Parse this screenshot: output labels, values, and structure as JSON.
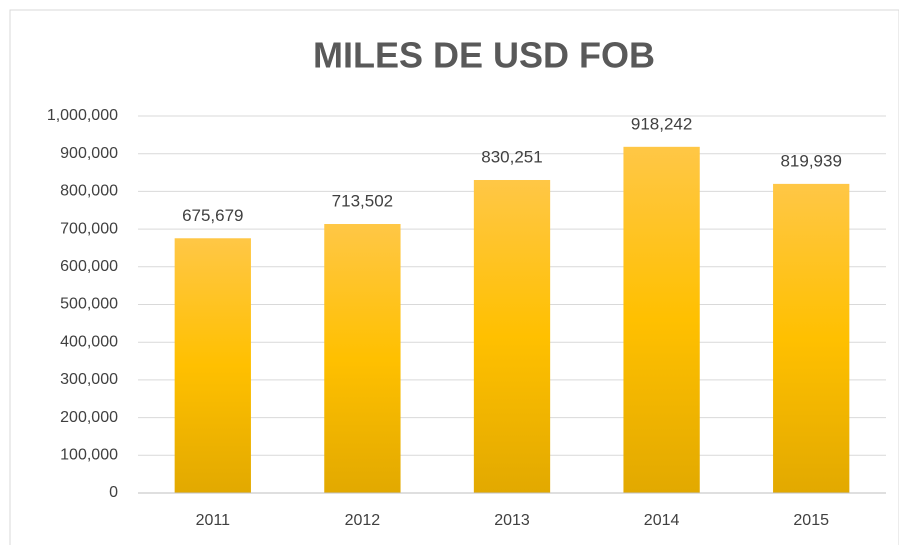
{
  "chart_data": {
    "type": "bar",
    "title": "MILES DE USD FOB",
    "categories": [
      "2011",
      "2012",
      "2013",
      "2014",
      "2015"
    ],
    "values": [
      675679,
      713502,
      830251,
      918242,
      819939
    ],
    "value_labels": [
      "675,679",
      "713,502",
      "830,251",
      "918,242",
      "819,939"
    ],
    "color": "#ffc000",
    "ylim": [
      0,
      1000000
    ],
    "yticks": [
      0,
      {
        "value": 100000,
        "label": "100,000"
      },
      {
        "value": 200000,
        "label": "200,000"
      },
      {
        "value": 300000,
        "label": "300,000"
      },
      {
        "value": 400000,
        "label": "400,000"
      },
      {
        "value": 500000,
        "label": "500,000"
      },
      {
        "value": 600000,
        "label": "600,000"
      },
      {
        "value": 700000,
        "label": "700,000"
      },
      {
        "value": 800000,
        "label": "800,000"
      },
      {
        "value": 900000,
        "label": "900,000"
      },
      {
        "value": 1000000,
        "label": "1,000,000"
      }
    ],
    "grid": true
  }
}
